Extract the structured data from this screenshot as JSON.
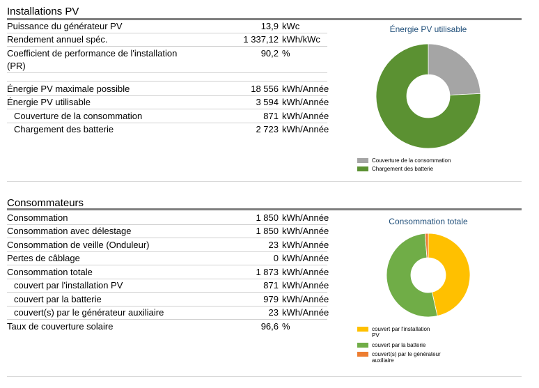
{
  "pv": {
    "title": "Installations PV",
    "rows": [
      {
        "label": "Puissance du générateur PV",
        "value": "13,9",
        "unit": "kWc"
      },
      {
        "label": "Rendement annuel spéc.",
        "value": "1 337,12",
        "unit": "kWh/kWc"
      },
      {
        "label": "Coefficient de performance de l'installation",
        "label2": "(PR)",
        "value": "90,2",
        "unit": "%"
      },
      {
        "label": "Énergie PV maximale possible",
        "value": "18 556",
        "unit": "kWh/Année"
      },
      {
        "label": "Énergie PV utilisable",
        "value": "3 594",
        "unit": "kWh/Année"
      },
      {
        "label": "Couverture de la consommation",
        "value": "871",
        "unit": "kWh/Année"
      },
      {
        "label": "Chargement des batterie",
        "value": "2 723",
        "unit": "kWh/Année"
      }
    ]
  },
  "cons": {
    "title": "Consommateurs",
    "rows": [
      {
        "label": "Consommation",
        "value": "1 850",
        "unit": "kWh/Année"
      },
      {
        "label": "Consommation avec délestage",
        "value": "1 850",
        "unit": "kWh/Année"
      },
      {
        "label": "Consommation de veille (Onduleur)",
        "value": "23",
        "unit": "kWh/Année"
      },
      {
        "label": "Pertes de câblage",
        "value": "0",
        "unit": "kWh/Année"
      },
      {
        "label": "Consommation totale",
        "value": "1 873",
        "unit": "kWh/Année"
      },
      {
        "label": "couvert par l'installation PV",
        "value": "871",
        "unit": "kWh/Année"
      },
      {
        "label": "couvert par la batterie",
        "value": "979",
        "unit": "kWh/Année"
      },
      {
        "label": "couvert(s) par le générateur auxiliaire",
        "value": "23",
        "unit": "kWh/Année"
      },
      {
        "label": "Taux de couverture solaire",
        "value": "96,6",
        "unit": "%"
      }
    ]
  },
  "chart_data": [
    {
      "type": "pie",
      "title": "Énergie PV utilisable",
      "categories": [
        "Couverture de la consommation",
        "Chargement des batterie"
      ],
      "values": [
        871,
        2723
      ],
      "colors": [
        "#a5a5a5",
        "#5b9132"
      ],
      "legend": "bottom"
    },
    {
      "type": "pie",
      "title": "Consommation totale",
      "categories": [
        "couvert par l'installation PV",
        "couvert par la batterie",
        "couvert(s) par le générateur auxiliaire"
      ],
      "legend_lines": [
        [
          "couvert par l'installation",
          "PV"
        ],
        [
          "couvert par la batterie"
        ],
        [
          "couvert(s) par le générateur",
          "auxiliaire"
        ]
      ],
      "values": [
        871,
        979,
        23
      ],
      "colors": [
        "#ffc000",
        "#70ad47",
        "#ed7d31"
      ],
      "legend": "bottom"
    }
  ]
}
